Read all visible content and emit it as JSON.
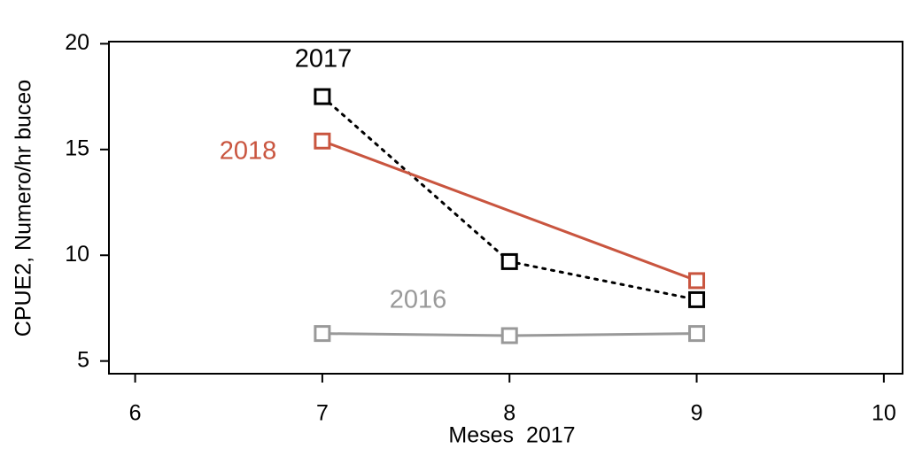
{
  "chart_data": {
    "type": "line",
    "xlabel": "Meses  2017",
    "ylabel": "CPUE2, Numero/hr buceo",
    "xlim": [
      5.86,
      10.1
    ],
    "ylim": [
      4.4,
      20.1
    ],
    "xticks": [
      6,
      7,
      8,
      9,
      10
    ],
    "yticks": [
      5,
      10,
      15,
      20
    ],
    "series": [
      {
        "name": "2017",
        "color": "#000000",
        "linestyle": "dotted",
        "x": [
          7,
          8,
          9
        ],
        "values": [
          17.5,
          9.7,
          7.9
        ]
      },
      {
        "name": "2018",
        "color": "#c9553f",
        "linestyle": "solid",
        "x": [
          7,
          9
        ],
        "values": [
          15.4,
          8.8
        ]
      },
      {
        "name": "2016",
        "color": "#999999",
        "linestyle": "solid",
        "x": [
          7,
          8,
          9
        ],
        "values": [
          6.3,
          6.2,
          6.3
        ]
      }
    ]
  }
}
